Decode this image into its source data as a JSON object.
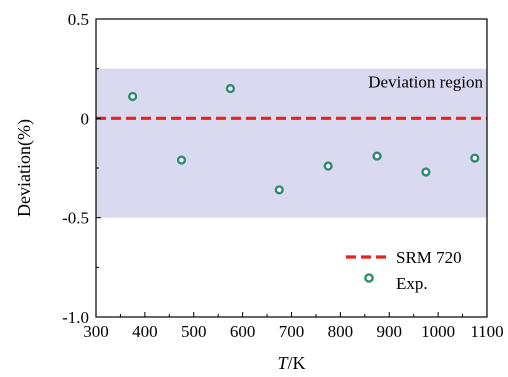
{
  "chart_data": {
    "type": "scatter",
    "xlabel": {
      "italic": "T",
      "rest": "/K"
    },
    "ylabel": "Deviation(%)",
    "xlim": [
      300,
      1100
    ],
    "ylim": [
      -1.0,
      0.5
    ],
    "xticks": [
      300,
      400,
      500,
      600,
      700,
      800,
      900,
      1000,
      1100
    ],
    "yticks": [
      {
        "value": 0.5,
        "label": "0.5"
      },
      {
        "value": 0,
        "label": "0"
      },
      {
        "value": -0.5,
        "label": "-0.5"
      },
      {
        "value": -1.0,
        "label": "-1.0"
      }
    ],
    "band": {
      "from": -0.5,
      "to": 0.25,
      "label": "Deviation  region",
      "color": "#d9d9f0"
    },
    "reference_line": {
      "y": 0,
      "name": "SRM 720",
      "color": "#e8231e"
    },
    "series": [
      {
        "name": "Exp.",
        "color": "#2e8b6f",
        "x": [
          375,
          475,
          575,
          675,
          775,
          875,
          975,
          1075
        ],
        "y": [
          0.11,
          -0.21,
          0.15,
          -0.36,
          -0.24,
          -0.19,
          -0.27,
          -0.2
        ]
      }
    ],
    "legend": "bottom-right"
  }
}
